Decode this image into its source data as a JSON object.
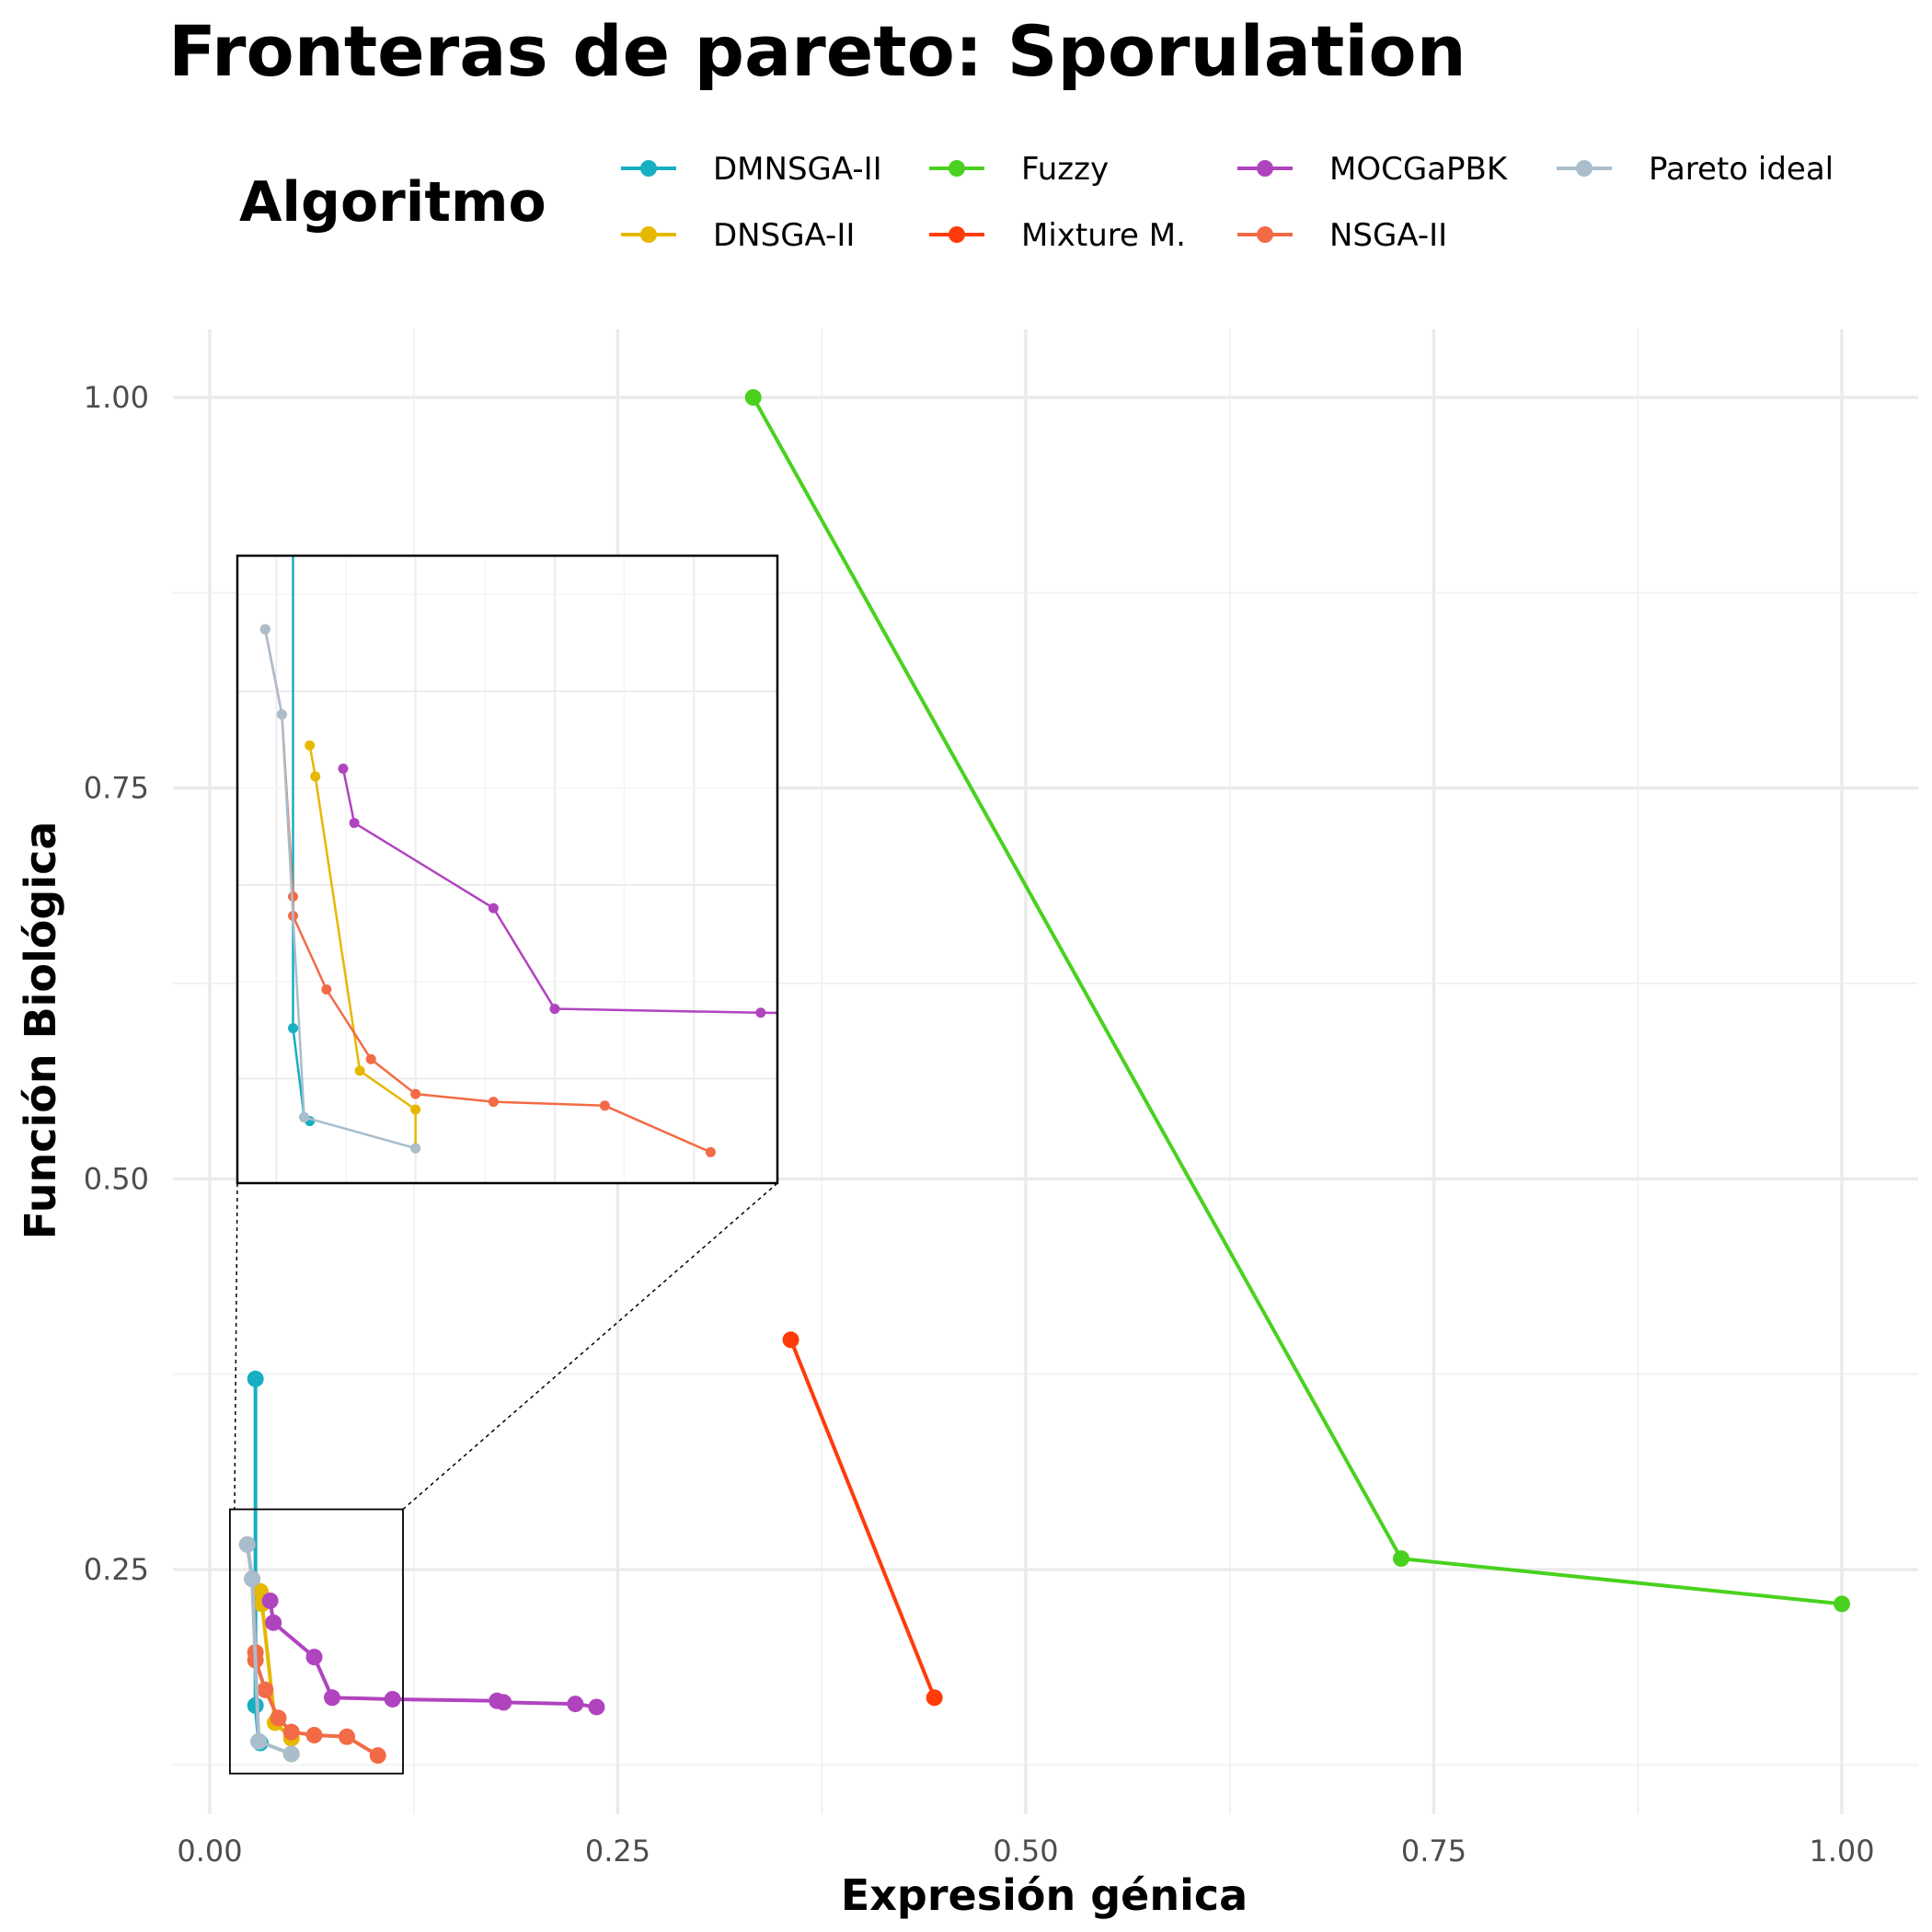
{
  "chart_data": {
    "type": "line",
    "title": "Fronteras de pareto: Sporulation",
    "xlabel": "Expresión génica",
    "ylabel": "Función Biológica",
    "xlim": [
      -0.025,
      1.05
    ],
    "ylim": [
      0.1,
      1.05
    ],
    "xticks": [
      0.0,
      0.25,
      0.5,
      0.75,
      1.0
    ],
    "xtick_labels": [
      "0.00",
      "0.25",
      "0.50",
      "0.75",
      "1.00"
    ],
    "yticks": [
      0.25,
      0.5,
      0.75,
      1.0
    ],
    "ytick_labels": [
      "0.25",
      "0.50",
      "0.75",
      "1.00"
    ],
    "grid": true,
    "legend_title": "Algoritmo",
    "legend_position": "top",
    "series": [
      {
        "name": "DMNSGA-II",
        "color": "#17AFC2",
        "points": [
          [
            0.028,
            0.372
          ],
          [
            0.028,
            0.163
          ],
          [
            0.03,
            0.14
          ],
          [
            0.031,
            0.139
          ]
        ]
      },
      {
        "name": "DNSGA-II",
        "color": "#E6B800",
        "points": [
          [
            0.031,
            0.236
          ],
          [
            0.032,
            0.228
          ],
          [
            0.04,
            0.152
          ],
          [
            0.05,
            0.142
          ],
          [
            0.05,
            0.132
          ]
        ]
      },
      {
        "name": "Fuzzy",
        "color": "#4AD11F",
        "points": [
          [
            0.333,
            1.0
          ],
          [
            0.73,
            0.257
          ],
          [
            1.0,
            0.228
          ]
        ]
      },
      {
        "name": "Mixture M.",
        "color": "#FF3B0A",
        "points": [
          [
            0.356,
            0.397
          ],
          [
            0.444,
            0.168
          ]
        ]
      },
      {
        "name": "MOCGaPBK",
        "color": "#B044BF",
        "points": [
          [
            0.037,
            0.23
          ],
          [
            0.039,
            0.216
          ],
          [
            0.064,
            0.194
          ],
          [
            0.075,
            0.168
          ],
          [
            0.112,
            0.167
          ],
          [
            0.176,
            0.166
          ],
          [
            0.18,
            0.165
          ],
          [
            0.224,
            0.164
          ],
          [
            0.237,
            0.162
          ]
        ]
      },
      {
        "name": "NSGA-II",
        "color": "#F26B46",
        "points": [
          [
            0.023,
            0.266
          ],
          [
            0.026,
            0.244
          ],
          [
            0.028,
            0.197
          ],
          [
            0.028,
            0.192
          ],
          [
            0.034,
            0.173
          ],
          [
            0.042,
            0.155
          ],
          [
            0.05,
            0.146
          ],
          [
            0.064,
            0.144
          ],
          [
            0.084,
            0.143
          ],
          [
            0.103,
            0.131
          ]
        ]
      },
      {
        "name": "Pareto ideal",
        "color": "#A9BDCC",
        "points": [
          [
            0.023,
            0.266
          ],
          [
            0.026,
            0.244
          ],
          [
            0.03,
            0.14
          ],
          [
            0.05,
            0.132
          ]
        ]
      }
    ],
    "inset": {
      "xlim": [
        0.018,
        0.115
      ],
      "ylim": [
        0.123,
        0.285
      ]
    }
  }
}
